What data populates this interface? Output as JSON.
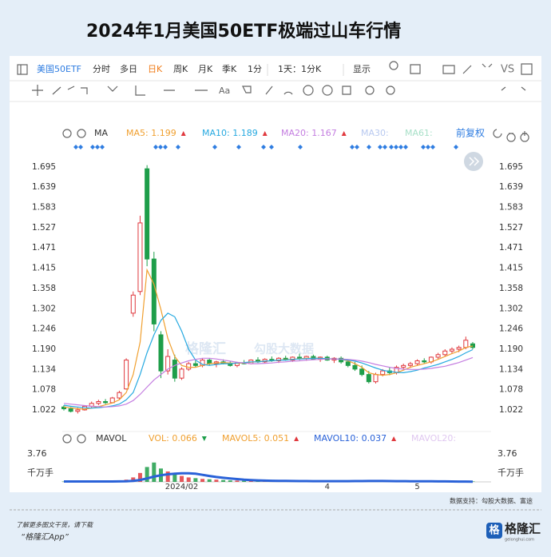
{
  "title": "2024年1月美国50ETF极端过山车行情",
  "toolbar": {
    "symbol": "美国50ETF",
    "tabs": [
      "分时",
      "多日",
      "日K",
      "周K",
      "月K"
    ],
    "active_tab": 2,
    "season": "季K",
    "minute": "1分",
    "interval": "1天：1分K",
    "display": "显示",
    "vs": "VS",
    "font": "Aa"
  },
  "chart_data": {
    "type": "candlestick",
    "ma_label": "MA",
    "adjust": "前复权",
    "up_color": "#e0393e",
    "down_color": "#1e9e4a",
    "grid": false,
    "ylim": [
      0.962,
      1.748
    ],
    "yticks": [
      1.022,
      1.078,
      1.134,
      {
        "value": 1.19,
        "label": "1.190"
      },
      1.246,
      1.302,
      1.358,
      1.415,
      1.471,
      1.527,
      1.583,
      1.639,
      1.695
    ],
    "categories": [
      null,
      null,
      null,
      null,
      null,
      null,
      null,
      null,
      null,
      null,
      null,
      null,
      null,
      null,
      null,
      null,
      null,
      "2024/02",
      null,
      null,
      null,
      null,
      null,
      null,
      null,
      null,
      null,
      null,
      null,
      null,
      null,
      null,
      null,
      null,
      null,
      null,
      null,
      null,
      "4",
      null,
      null,
      null,
      null,
      null,
      null,
      null,
      null,
      null,
      null,
      null,
      null,
      "5",
      null,
      null,
      null,
      null,
      null,
      null,
      null,
      null
    ],
    "candles": [
      [
        1.03,
        1.035,
        1.02,
        1.025
      ],
      [
        1.025,
        1.03,
        1.015,
        1.018
      ],
      [
        1.018,
        1.028,
        1.012,
        1.022
      ],
      [
        1.022,
        1.035,
        1.02,
        1.032
      ],
      [
        1.032,
        1.045,
        1.028,
        1.04
      ],
      [
        1.04,
        1.05,
        1.035,
        1.045
      ],
      [
        1.045,
        1.052,
        1.038,
        1.042
      ],
      [
        1.042,
        1.058,
        1.04,
        1.055
      ],
      [
        1.055,
        1.075,
        1.05,
        1.07
      ],
      [
        1.08,
        1.165,
        1.078,
        1.16
      ],
      [
        1.29,
        1.35,
        1.28,
        1.34
      ],
      [
        1.35,
        1.56,
        1.34,
        1.54
      ],
      [
        1.69,
        1.7,
        1.42,
        1.44
      ],
      [
        1.44,
        1.46,
        1.24,
        1.26
      ],
      [
        1.23,
        1.24,
        1.11,
        1.13
      ],
      [
        1.13,
        1.19,
        1.12,
        1.17
      ],
      [
        1.16,
        1.175,
        1.1,
        1.11
      ],
      [
        1.11,
        1.14,
        1.105,
        1.135
      ],
      [
        1.135,
        1.155,
        1.13,
        1.15
      ],
      [
        1.15,
        1.16,
        1.14,
        1.145
      ],
      [
        1.145,
        1.165,
        1.14,
        1.16
      ],
      [
        1.16,
        1.165,
        1.145,
        1.15
      ],
      [
        1.15,
        1.158,
        1.14,
        1.155
      ],
      [
        1.155,
        1.162,
        1.148,
        1.15
      ],
      [
        1.15,
        1.158,
        1.142,
        1.145
      ],
      [
        1.145,
        1.155,
        1.14,
        1.152
      ],
      [
        1.152,
        1.16,
        1.148,
        1.15
      ],
      [
        1.15,
        1.162,
        1.148,
        1.16
      ],
      [
        1.16,
        1.168,
        1.152,
        1.155
      ],
      [
        1.155,
        1.165,
        1.15,
        1.162
      ],
      [
        1.162,
        1.17,
        1.155,
        1.158
      ],
      [
        1.158,
        1.168,
        1.152,
        1.165
      ],
      [
        1.165,
        1.172,
        1.158,
        1.16
      ],
      [
        1.16,
        1.17,
        1.155,
        1.168
      ],
      [
        1.168,
        1.178,
        1.16,
        1.165
      ],
      [
        1.165,
        1.172,
        1.158,
        1.17
      ],
      [
        1.17,
        1.175,
        1.16,
        1.162
      ],
      [
        1.162,
        1.17,
        1.155,
        1.168
      ],
      [
        1.168,
        1.172,
        1.158,
        1.16
      ],
      [
        1.16,
        1.168,
        1.152,
        1.165
      ],
      [
        1.165,
        1.17,
        1.15,
        1.155
      ],
      [
        1.155,
        1.162,
        1.14,
        1.145
      ],
      [
        1.145,
        1.155,
        1.13,
        1.135
      ],
      [
        1.135,
        1.145,
        1.115,
        1.12
      ],
      [
        1.12,
        1.13,
        1.095,
        1.1
      ],
      [
        1.1,
        1.125,
        1.095,
        1.12
      ],
      [
        1.12,
        1.135,
        1.115,
        1.13
      ],
      [
        1.13,
        1.14,
        1.118,
        1.125
      ],
      [
        1.125,
        1.145,
        1.12,
        1.14
      ],
      [
        1.14,
        1.15,
        1.132,
        1.145
      ],
      [
        1.145,
        1.155,
        1.138,
        1.15
      ],
      [
        1.15,
        1.162,
        1.145,
        1.158
      ],
      [
        1.158,
        1.165,
        1.15,
        1.155
      ],
      [
        1.155,
        1.17,
        1.15,
        1.168
      ],
      [
        1.168,
        1.18,
        1.162,
        1.175
      ],
      [
        1.175,
        1.19,
        1.17,
        1.185
      ],
      [
        1.185,
        1.195,
        1.178,
        1.19
      ],
      [
        1.19,
        1.2,
        1.182,
        1.195
      ],
      [
        1.195,
        1.225,
        1.19,
        1.215
      ],
      [
        1.205,
        1.21,
        1.19,
        1.195
      ]
    ],
    "series": [
      {
        "name": "MA5: 1.199",
        "color": "#f0a030",
        "trend": "up",
        "values": [
          1.03,
          1.028,
          1.025,
          1.024,
          1.027,
          1.031,
          1.036,
          1.041,
          1.05,
          1.07,
          1.12,
          1.21,
          1.41,
          1.37,
          1.3,
          1.22,
          1.17,
          1.145,
          1.14,
          1.14,
          1.145,
          1.15,
          1.152,
          1.153,
          1.152,
          1.151,
          1.152,
          1.154,
          1.156,
          1.157,
          1.158,
          1.16,
          1.161,
          1.162,
          1.164,
          1.165,
          1.165,
          1.165,
          1.164,
          1.163,
          1.162,
          1.158,
          1.15,
          1.14,
          1.125,
          1.12,
          1.118,
          1.12,
          1.125,
          1.132,
          1.14,
          1.145,
          1.15,
          1.155,
          1.162,
          1.17,
          1.178,
          1.185,
          1.195,
          1.199
        ]
      },
      {
        "name": "MA10: 1.189",
        "color": "#26a9e0",
        "trend": "up",
        "values": [
          1.035,
          1.032,
          1.03,
          1.028,
          1.027,
          1.028,
          1.03,
          1.033,
          1.038,
          1.05,
          1.07,
          1.12,
          1.18,
          1.23,
          1.27,
          1.29,
          1.28,
          1.24,
          1.19,
          1.16,
          1.148,
          1.145,
          1.148,
          1.15,
          1.15,
          1.152,
          1.153,
          1.155,
          1.155,
          1.157,
          1.158,
          1.16,
          1.16,
          1.162,
          1.163,
          1.164,
          1.165,
          1.165,
          1.164,
          1.163,
          1.162,
          1.16,
          1.157,
          1.152,
          1.145,
          1.138,
          1.132,
          1.128,
          1.126,
          1.125,
          1.128,
          1.132,
          1.138,
          1.143,
          1.148,
          1.155,
          1.162,
          1.17,
          1.18,
          1.189
        ]
      },
      {
        "name": "MA20: 1.167",
        "color": "#c47ee0",
        "trend": "up",
        "values": [
          1.04,
          1.038,
          1.036,
          1.034,
          1.032,
          1.031,
          1.03,
          1.031,
          1.033,
          1.038,
          1.048,
          1.065,
          1.085,
          1.105,
          1.12,
          1.135,
          1.145,
          1.152,
          1.158,
          1.162,
          1.165,
          1.165,
          1.163,
          1.16,
          1.157,
          1.154,
          1.152,
          1.15,
          1.15,
          1.151,
          1.152,
          1.154,
          1.155,
          1.157,
          1.158,
          1.16,
          1.161,
          1.162,
          1.163,
          1.163,
          1.163,
          1.162,
          1.16,
          1.157,
          1.153,
          1.148,
          1.144,
          1.14,
          1.137,
          1.135,
          1.134,
          1.134,
          1.135,
          1.137,
          1.14,
          1.143,
          1.148,
          1.153,
          1.16,
          1.167
        ]
      },
      {
        "name": "MA30:",
        "color": "#b8c9f0"
      },
      {
        "name": "MA61:",
        "color": "#a8e0c8"
      }
    ],
    "volume": {
      "label": "MAVOL",
      "unit": "千万手",
      "ylim": [
        0,
        3.76
      ],
      "yticks": [
        3.76
      ],
      "values": [
        0.05,
        0.04,
        0.05,
        0.06,
        0.05,
        0.06,
        0.05,
        0.07,
        0.1,
        0.3,
        0.6,
        1.2,
        2.0,
        2.6,
        1.8,
        1.4,
        1.0,
        0.8,
        0.6,
        0.5,
        0.4,
        0.35,
        0.3,
        0.25,
        0.2,
        0.18,
        0.15,
        0.15,
        0.14,
        0.13,
        0.12,
        0.12,
        0.11,
        0.1,
        0.1,
        0.1,
        0.09,
        0.09,
        0.1,
        0.1,
        0.11,
        0.12,
        0.12,
        0.13,
        0.15,
        0.12,
        0.1,
        0.09,
        0.08,
        0.08,
        0.07,
        0.07,
        0.07,
        0.06,
        0.07,
        0.07,
        0.06,
        0.06,
        0.07,
        0.066
      ],
      "legend": [
        {
          "name": "VOL: 0.066",
          "color": "#f0a030",
          "trend": "down"
        },
        {
          "name": "MAVOL5: 0.051",
          "color": "#f0a030",
          "trend": "up"
        },
        {
          "name": "MAVOL10: 0.037",
          "color": "#2a62d8",
          "trend": "up",
          "values": [
            0.05,
            0.05,
            0.05,
            0.05,
            0.05,
            0.05,
            0.05,
            0.05,
            0.06,
            0.08,
            0.14,
            0.26,
            0.46,
            0.71,
            0.89,
            1.02,
            1.1,
            1.15,
            1.15,
            1.1,
            0.95,
            0.8,
            0.65,
            0.55,
            0.45,
            0.38,
            0.3,
            0.25,
            0.2,
            0.17,
            0.15,
            0.14,
            0.13,
            0.12,
            0.11,
            0.11,
            0.1,
            0.1,
            0.1,
            0.1,
            0.1,
            0.1,
            0.11,
            0.11,
            0.12,
            0.12,
            0.12,
            0.11,
            0.1,
            0.1,
            0.09,
            0.08,
            0.07,
            0.07,
            0.06,
            0.06,
            0.05,
            0.04,
            0.04,
            0.037
          ]
        },
        {
          "name": "MAVOL20:",
          "color": "#e0c8f0"
        }
      ]
    }
  },
  "watermark": [
    "格隆汇",
    "勾股大数据"
  ],
  "source": "数据支持：勾股大数据、富途",
  "footer": {
    "prompt": "了解更多图文干货，请下载",
    "app": "“格隆汇App”",
    "logo": "格隆汇",
    "logo_char": "格",
    "site": "gelonghui.com"
  }
}
